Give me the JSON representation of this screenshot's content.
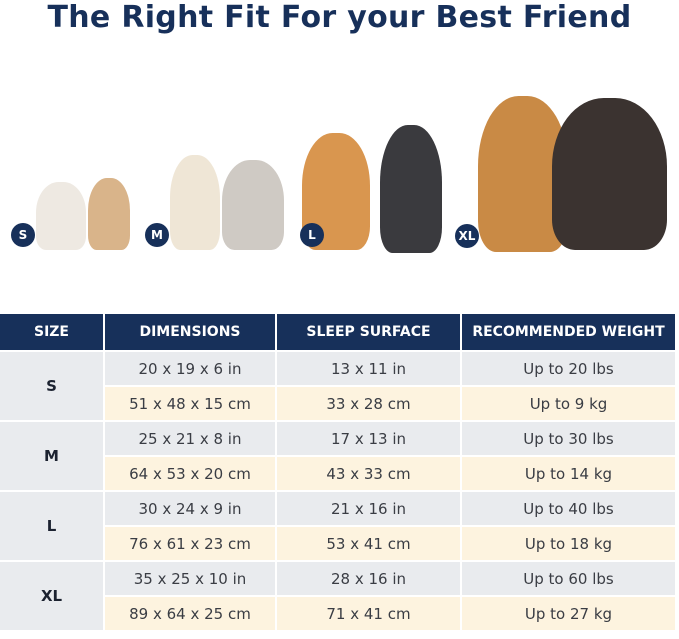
{
  "title": "The Right Fit For your Best Friend",
  "badges": [
    "S",
    "M",
    "L",
    "XL"
  ],
  "headers": [
    "SIZE",
    "DIMENSIONS",
    "SLEEP SURFACE",
    "RECOMMENDED WEIGHT"
  ],
  "rows": [
    {
      "size": "S",
      "in": [
        "20 x 19 x 6 in",
        "13 x 11 in",
        "Up to 20 lbs"
      ],
      "cm": [
        "51 x 48 x 15 cm",
        "33 x 28 cm",
        "Up to 9 kg"
      ]
    },
    {
      "size": "M",
      "in": [
        "25 x 21 x 8 in",
        "17 x 13 in",
        "Up to 30 lbs"
      ],
      "cm": [
        "64 x 53 x 20 cm",
        "43 x 33 cm",
        "Up to 14 kg"
      ]
    },
    {
      "size": "L",
      "in": [
        "30 x 24 x 9 in",
        "21 x 16 in",
        "Up to 40 lbs"
      ],
      "cm": [
        "76 x 61 x 23 cm",
        "53 x 41 cm",
        "Up to 18 kg"
      ]
    },
    {
      "size": "XL",
      "in": [
        "35 x 25 x 10 in",
        "28 x 16 in",
        "Up to 60 lbs"
      ],
      "cm": [
        "89 x 64 x 25 cm",
        "71 x 41 cm",
        "Up to 27 kg"
      ]
    }
  ],
  "colors": {
    "navy": "#17305a",
    "gray_row": "#e9ebee",
    "cream_row": "#fdf3df"
  }
}
